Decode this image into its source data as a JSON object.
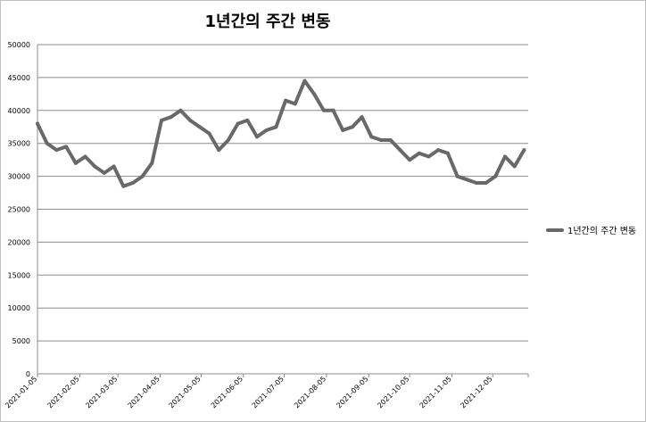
{
  "chart_data": {
    "type": "line",
    "title": "1년간의 주간 변동",
    "x": [
      "2021-01-05",
      "2021-01-12",
      "2021-01-19",
      "2021-01-26",
      "2021-02-02",
      "2021-02-09",
      "2021-02-16",
      "2021-02-23",
      "2021-03-02",
      "2021-03-09",
      "2021-03-16",
      "2021-03-23",
      "2021-03-30",
      "2021-04-06",
      "2021-04-13",
      "2021-04-20",
      "2021-04-27",
      "2021-05-04",
      "2021-05-11",
      "2021-05-18",
      "2021-05-25",
      "2021-06-01",
      "2021-06-08",
      "2021-06-15",
      "2021-06-22",
      "2021-06-29",
      "2021-07-06",
      "2021-07-13",
      "2021-07-20",
      "2021-07-27",
      "2021-08-03",
      "2021-08-10",
      "2021-08-17",
      "2021-08-24",
      "2021-08-31",
      "2021-09-07",
      "2021-09-14",
      "2021-09-21",
      "2021-09-28",
      "2021-10-05",
      "2021-10-12",
      "2021-10-19",
      "2021-10-26",
      "2021-11-02",
      "2021-11-09",
      "2021-11-16",
      "2021-11-23",
      "2021-11-30",
      "2021-12-07",
      "2021-12-14",
      "2021-12-21",
      "2021-12-28"
    ],
    "series": [
      {
        "name": "1년간의 주간 변동",
        "values": [
          38000,
          35000,
          34000,
          34500,
          32000,
          33000,
          31500,
          30500,
          31500,
          28500,
          29000,
          30000,
          32000,
          38500,
          39000,
          40000,
          38500,
          37500,
          36500,
          34000,
          35500,
          38000,
          38500,
          36000,
          37000,
          37500,
          41500,
          41000,
          44500,
          42500,
          40000,
          40000,
          37000,
          37500,
          39000,
          36000,
          35500,
          35500,
          34000,
          32500,
          33500,
          33000,
          34000,
          33500,
          30000,
          29500,
          29000,
          29000,
          30000,
          33000,
          31500,
          34000
        ]
      }
    ],
    "yticks": [
      "0",
      "5000",
      "10000",
      "15000",
      "20000",
      "25000",
      "30000",
      "35000",
      "40000",
      "45000",
      "50000"
    ],
    "xticks": [
      "2021-01-05",
      "2021-02-05",
      "2021-03-05",
      "2021-04-05",
      "2021-05-05",
      "2021-06-05",
      "2021-07-05",
      "2021-08-05",
      "2021-09-05",
      "2021-10-05",
      "2021-11-05",
      "2021-12-05"
    ],
    "ylim": [
      0,
      50000
    ],
    "x_range": [
      "2021-01-05",
      "2021-12-31"
    ],
    "grid": true,
    "legend_position": "right",
    "line_color": "#696969"
  }
}
